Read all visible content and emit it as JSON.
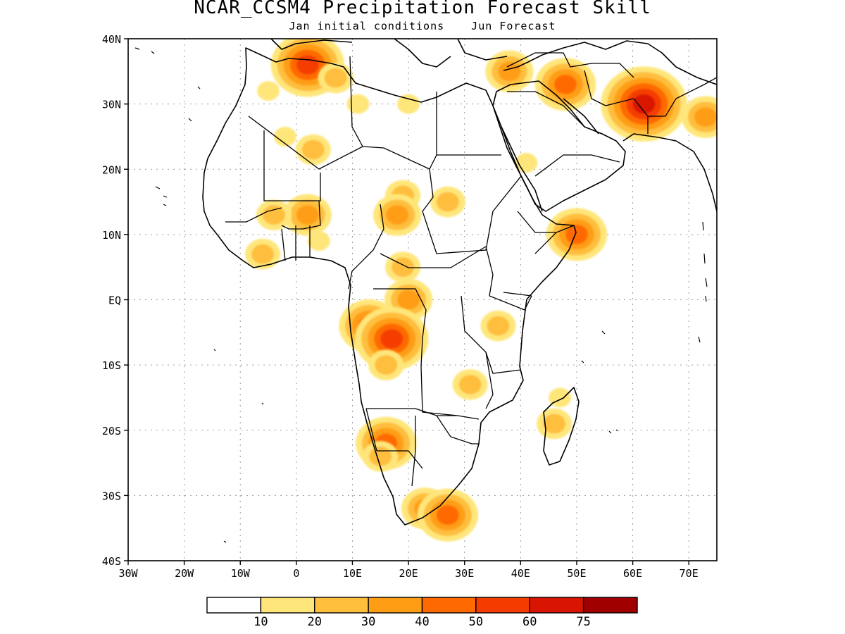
{
  "title": "NCAR_CCSM4 Precipitation Forecast Skill",
  "subtitle": {
    "left": "Jan initial conditions",
    "right": "Jun Forecast"
  },
  "map": {
    "lon_range": [
      -30,
      75
    ],
    "lat_range": [
      -40,
      40
    ],
    "grid": true,
    "lat_ticks": [
      {
        "value": 40,
        "label": "40N"
      },
      {
        "value": 30,
        "label": "30N"
      },
      {
        "value": 20,
        "label": "20N"
      },
      {
        "value": 10,
        "label": "10N"
      },
      {
        "value": 0,
        "label": "EQ"
      },
      {
        "value": -10,
        "label": "10S"
      },
      {
        "value": -20,
        "label": "20S"
      },
      {
        "value": -30,
        "label": "30S"
      },
      {
        "value": -40,
        "label": "40S"
      }
    ],
    "lon_ticks": [
      {
        "value": -30,
        "label": "30W"
      },
      {
        "value": -20,
        "label": "20W"
      },
      {
        "value": -10,
        "label": "10W"
      },
      {
        "value": 0,
        "label": "0"
      },
      {
        "value": 10,
        "label": "10E"
      },
      {
        "value": 20,
        "label": "20E"
      },
      {
        "value": 30,
        "label": "30E"
      },
      {
        "value": 40,
        "label": "40E"
      },
      {
        "value": 50,
        "label": "50E"
      },
      {
        "value": 60,
        "label": "60E"
      },
      {
        "value": 70,
        "label": "70E"
      }
    ]
  },
  "colorbar": {
    "colors": [
      "#ffffff",
      "#ffe67a",
      "#ffbe3c",
      "#ff9e14",
      "#ff6a00",
      "#f53c00",
      "#d91400",
      "#a00000"
    ],
    "labels": [
      "10",
      "20",
      "30",
      "40",
      "50",
      "60",
      "75"
    ]
  },
  "skill_regions": [
    {
      "lon": 3,
      "lat": 23,
      "level": 2
    },
    {
      "lon": -2,
      "lat": 25,
      "level": 1
    },
    {
      "lon": -5,
      "lat": 32,
      "level": 1
    },
    {
      "lon": 2,
      "lat": 36,
      "level": 5
    },
    {
      "lon": 7,
      "lat": 34,
      "level": 2
    },
    {
      "lon": 11,
      "lat": 30,
      "level": 1
    },
    {
      "lon": 20,
      "lat": 30,
      "level": 1
    },
    {
      "lon": 19,
      "lat": 16,
      "level": 2
    },
    {
      "lon": 18,
      "lat": 13,
      "level": 3
    },
    {
      "lon": 27,
      "lat": 15,
      "level": 2
    },
    {
      "lon": 2,
      "lat": 13,
      "level": 3
    },
    {
      "lon": -4,
      "lat": 13,
      "level": 2
    },
    {
      "lon": -6,
      "lat": 7,
      "level": 2
    },
    {
      "lon": 4,
      "lat": 9,
      "level": 1
    },
    {
      "lon": 20,
      "lat": 0,
      "level": 3
    },
    {
      "lon": 13,
      "lat": -4,
      "level": 4
    },
    {
      "lon": 17,
      "lat": -6,
      "level": 5
    },
    {
      "lon": 19,
      "lat": 5,
      "level": 2
    },
    {
      "lon": 16,
      "lat": -10,
      "level": 2
    },
    {
      "lon": 36,
      "lat": -4,
      "level": 2
    },
    {
      "lon": 31,
      "lat": -13,
      "level": 2
    },
    {
      "lon": 50,
      "lat": 10,
      "level": 4
    },
    {
      "lon": 41,
      "lat": 21,
      "level": 1
    },
    {
      "lon": 48,
      "lat": 33,
      "level": 4
    },
    {
      "lon": 62,
      "lat": 30,
      "level": 6
    },
    {
      "lon": 73,
      "lat": 28,
      "level": 3
    },
    {
      "lon": 38,
      "lat": 35,
      "level": 3
    },
    {
      "lon": 16,
      "lat": -22,
      "level": 4
    },
    {
      "lon": 15,
      "lat": -24,
      "level": 2
    },
    {
      "lon": 23,
      "lat": -32,
      "level": 3
    },
    {
      "lon": 27,
      "lat": -33,
      "level": 4
    },
    {
      "lon": 46,
      "lat": -19,
      "level": 2
    },
    {
      "lon": 47,
      "lat": -15,
      "level": 1
    }
  ]
}
